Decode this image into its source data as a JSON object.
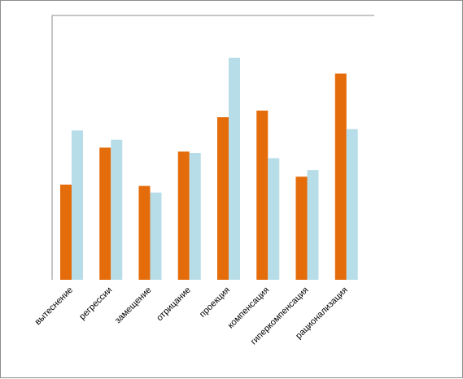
{
  "chart_data": {
    "type": "bar",
    "title": "",
    "xlabel": "",
    "ylabel": "",
    "ylim": [
      0,
      100
    ],
    "grid": false,
    "legend": "none",
    "categories": [
      "вытеснение",
      "регрессии",
      "замещение",
      "отрицание",
      "проекция",
      "компенсация",
      "гиперкомпенсация",
      "рационализация"
    ],
    "series": [
      {
        "values": [
          36,
          50,
          35.5,
          48.5,
          61.5,
          64,
          39,
          78
        ],
        "color": "#e46c0a"
      },
      {
        "values": [
          56.5,
          53,
          33,
          48,
          84,
          46,
          41.5,
          57
        ],
        "color": "#b7dde8"
      }
    ]
  }
}
